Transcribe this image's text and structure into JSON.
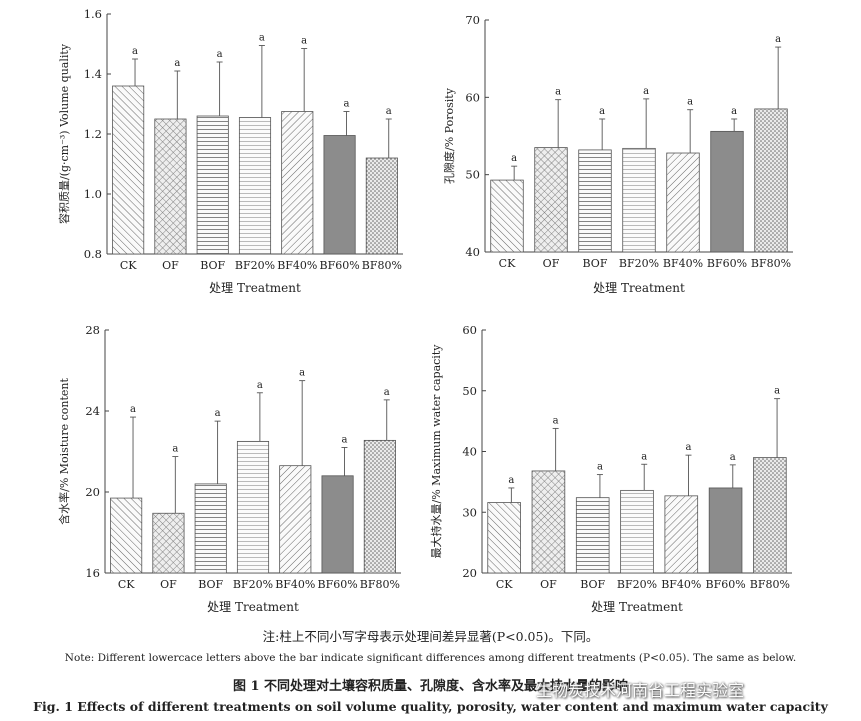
{
  "chart_data": [
    {
      "type": "bar",
      "ylabel": "容积质量/(g·cm⁻³) Volume quality",
      "xlabel": "处理  Treatment",
      "categories": [
        "CK",
        "OF",
        "BOF",
        "BF20%",
        "BF40%",
        "BF60%",
        "BF80%"
      ],
      "values": [
        1.36,
        1.25,
        1.26,
        1.255,
        1.275,
        1.195,
        1.12
      ],
      "errors": [
        0.09,
        0.16,
        0.18,
        0.24,
        0.21,
        0.08,
        0.13
      ],
      "letters": [
        "a",
        "a",
        "a",
        "a",
        "a",
        "a",
        "a"
      ],
      "ylim": [
        0.8,
        1.6
      ],
      "yticks": [
        "0.8",
        "1.0",
        "1.2",
        "1.4",
        "1.6"
      ]
    },
    {
      "type": "bar",
      "ylabel": "孔隙度/% Porosity",
      "xlabel": "处理  Treatment",
      "categories": [
        "CK",
        "OF",
        "BOF",
        "BF20%",
        "BF40%",
        "BF60%",
        "BF80%"
      ],
      "values": [
        49.3,
        53.5,
        53.2,
        53.4,
        52.8,
        55.6,
        58.5
      ],
      "errors": [
        1.8,
        6.2,
        4.0,
        6.4,
        5.6,
        1.6,
        8.0
      ],
      "letters": [
        "a",
        "a",
        "a",
        "a",
        "a",
        "a",
        "a"
      ],
      "ylim": [
        40,
        70
      ],
      "yticks": [
        "40",
        "50",
        "60",
        "70"
      ]
    },
    {
      "type": "bar",
      "ylabel": "含水率/% Moisture content",
      "xlabel": "处理  Treatment",
      "categories": [
        "CK",
        "OF",
        "BOF",
        "BF20%",
        "BF40%",
        "BF60%",
        "BF80%"
      ],
      "values": [
        19.7,
        18.95,
        20.4,
        22.5,
        21.3,
        20.8,
        22.55
      ],
      "errors": [
        4.0,
        2.8,
        3.1,
        2.4,
        4.2,
        1.4,
        2.0
      ],
      "letters": [
        "a",
        "a",
        "a",
        "a",
        "a",
        "a",
        "a"
      ],
      "ylim": [
        16,
        28
      ],
      "yticks": [
        "16",
        "20",
        "24",
        "28"
      ]
    },
    {
      "type": "bar",
      "ylabel": "最大持水量/% Maximum water capacity",
      "xlabel": "处理  Treatment",
      "categories": [
        "CK",
        "OF",
        "BOF",
        "BF20%",
        "BF40%",
        "BF60%",
        "BF80%"
      ],
      "values": [
        31.6,
        36.8,
        32.4,
        33.6,
        32.7,
        34.0,
        39.0
      ],
      "errors": [
        2.4,
        7.0,
        3.8,
        4.3,
        6.7,
        3.8,
        9.7
      ],
      "letters": [
        "a",
        "a",
        "a",
        "a",
        "a",
        "a",
        "a"
      ],
      "ylim": [
        20,
        60
      ],
      "yticks": [
        "20",
        "30",
        "40",
        "50",
        "60"
      ]
    }
  ],
  "bar_styles": [
    "hatch-back",
    "hatch-cross",
    "hatch-horizontal",
    "hatch-horizontal-light",
    "hatch-forward",
    "solid-gray",
    "hatch-dots"
  ],
  "colors": {
    "axis": "#444444",
    "bar_stroke": "#555555",
    "solid_bar": "#8c8c8c",
    "text": "#222222"
  },
  "captions": {
    "note_cn": "注:柱上不同小写字母表示处理间差异显著(P<0.05)。下同。",
    "note_en": "Note: Different lowercace letters above the bar indicate significant differences among different treatments (P<0.05). The same as below.",
    "title_cn": "图 1    不同处理对土壤容积质量、孔隙度、含水率及最大持水量的影响",
    "title_en": "Fig. 1    Effects of different treatments on soil volume quality, porosity, water content and maximum water capacity"
  },
  "watermark": "生物炭技术河南省工程实验室"
}
